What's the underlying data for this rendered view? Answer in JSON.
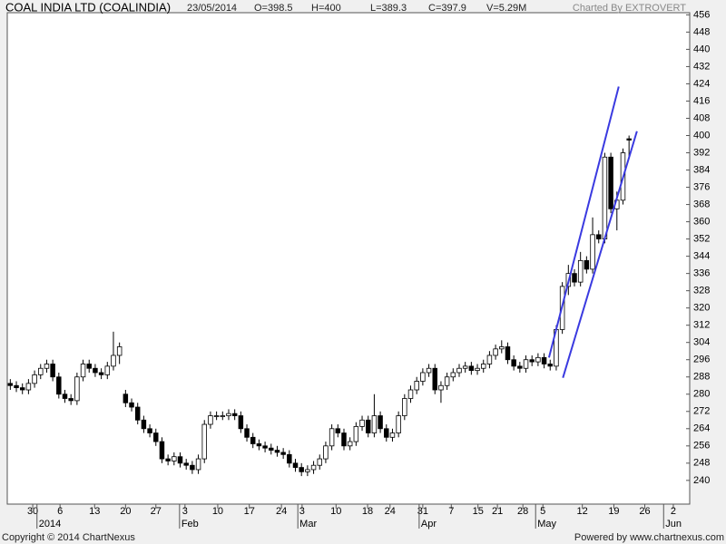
{
  "chart_data": {
    "type": "candlestick",
    "title": "COAL INDIA LTD (COALINDIA)",
    "info": [
      "23/05/2014",
      "O=398.5",
      "H=400",
      "L=389.3",
      "C=397.9",
      "V=5.29M"
    ],
    "credit": "Charted By EXTROVERT",
    "footer_left": "Copyright © 2014 ChartNexus",
    "footer_right": "Powered by www.chartnexus.com",
    "up_color": "#ffffff",
    "down_color": "#000000",
    "trend_color": "#3a3ae0",
    "open": [
      285,
      284,
      283,
      282,
      285,
      289,
      292,
      294,
      288,
      280,
      278,
      277,
      288,
      294,
      292,
      290,
      289,
      293,
      298,
      280,
      276,
      274,
      268,
      264,
      262,
      258,
      250,
      249,
      251,
      248,
      247,
      245,
      250,
      266,
      270,
      270,
      270,
      271,
      270,
      264,
      260,
      257,
      256,
      255,
      254,
      253,
      252,
      248,
      246,
      244,
      245,
      247,
      250,
      256,
      264,
      262,
      256,
      258,
      265,
      268,
      262,
      270,
      264,
      260,
      262,
      270,
      278,
      282,
      286,
      290,
      292,
      282,
      284,
      288,
      290,
      292,
      293,
      291,
      292,
      294,
      298,
      301,
      302,
      296,
      293,
      292,
      296,
      295,
      297,
      294,
      293,
      310,
      330,
      336,
      332,
      342,
      338,
      354,
      352,
      390,
      366,
      370,
      398.5
    ],
    "high": [
      287,
      286,
      285,
      287,
      291,
      294,
      296,
      296,
      290,
      282,
      280,
      290,
      296,
      296,
      294,
      292,
      295,
      309,
      304,
      282,
      278,
      276,
      270,
      266,
      264,
      260,
      252,
      253,
      253,
      250,
      249,
      252,
      268,
      272,
      272,
      272,
      273,
      273,
      272,
      266,
      262,
      259,
      258,
      257,
      256,
      255,
      254,
      250,
      248,
      247,
      249,
      252,
      258,
      266,
      266,
      264,
      260,
      267,
      270,
      270,
      280,
      272,
      266,
      264,
      272,
      280,
      284,
      288,
      292,
      294,
      294,
      286,
      290,
      292,
      294,
      295,
      295,
      294,
      296,
      300,
      303,
      305,
      304,
      298,
      295,
      298,
      298,
      299,
      299,
      296,
      312,
      332,
      340,
      338,
      346,
      344,
      362,
      356,
      392,
      392,
      374,
      394,
      400
    ],
    "low": [
      282,
      281,
      280,
      280,
      283,
      287,
      290,
      286,
      278,
      276,
      275,
      275,
      286,
      290,
      288,
      287,
      287,
      291,
      294,
      274,
      272,
      266,
      262,
      260,
      256,
      248,
      247,
      247,
      246,
      245,
      243,
      243,
      248,
      264,
      268,
      268,
      268,
      268,
      262,
      258,
      255,
      254,
      253,
      252,
      251,
      250,
      246,
      244,
      242,
      242,
      243,
      245,
      248,
      254,
      260,
      254,
      254,
      256,
      263,
      260,
      260,
      262,
      258,
      258,
      260,
      268,
      276,
      280,
      284,
      288,
      280,
      276,
      282,
      286,
      288,
      290,
      289,
      289,
      290,
      292,
      296,
      299,
      294,
      291,
      290,
      290,
      293,
      293,
      292,
      291,
      291,
      308,
      326,
      330,
      330,
      336,
      336,
      350,
      350,
      364,
      356,
      368,
      389.3
    ],
    "close": [
      284,
      283,
      282,
      285,
      289,
      292,
      294,
      288,
      280,
      278,
      277,
      288,
      294,
      292,
      290,
      289,
      293,
      298,
      302,
      276,
      274,
      268,
      264,
      262,
      258,
      250,
      249,
      251,
      248,
      247,
      245,
      250,
      266,
      270,
      270,
      270,
      271,
      270,
      264,
      260,
      257,
      256,
      255,
      254,
      253,
      252,
      248,
      246,
      244,
      245,
      247,
      250,
      256,
      264,
      262,
      256,
      258,
      265,
      268,
      262,
      270,
      264,
      260,
      262,
      270,
      278,
      282,
      286,
      290,
      292,
      282,
      284,
      288,
      290,
      292,
      293,
      291,
      292,
      294,
      298,
      301,
      302,
      296,
      293,
      292,
      296,
      295,
      297,
      294,
      293,
      310,
      330,
      336,
      332,
      342,
      338,
      354,
      352,
      390,
      366,
      370,
      392,
      397.9
    ],
    "trendlines": [
      {
        "x": [
          88.8,
          100.3
        ],
        "y": [
          297,
          422.7
        ]
      },
      {
        "x": [
          91.1,
          103.3
        ],
        "y": [
          287.6,
          402
        ]
      }
    ],
    "xlim": [
      -0.5,
      112
    ],
    "xticks": [
      {
        "value": 3.7,
        "label": "30"
      },
      {
        "value": 8.2,
        "label": "6"
      },
      {
        "value": 13.9,
        "label": "13"
      },
      {
        "value": 19,
        "label": "20"
      },
      {
        "value": 24,
        "label": "27"
      },
      {
        "value": 28.8,
        "label": "3"
      },
      {
        "value": 34.2,
        "label": "10"
      },
      {
        "value": 39.4,
        "label": "17"
      },
      {
        "value": 44.7,
        "label": "24"
      },
      {
        "value": 48.1,
        "label": "3"
      },
      {
        "value": 53.7,
        "label": "10"
      },
      {
        "value": 58.9,
        "label": "18"
      },
      {
        "value": 62.6,
        "label": "24"
      },
      {
        "value": 68,
        "label": "31"
      },
      {
        "value": 72.7,
        "label": "7"
      },
      {
        "value": 77.1,
        "label": "15"
      },
      {
        "value": 80.3,
        "label": "21"
      },
      {
        "value": 84.5,
        "label": "28"
      },
      {
        "value": 87.8,
        "label": "5"
      },
      {
        "value": 94.3,
        "label": "12"
      },
      {
        "value": 99.5,
        "label": "19"
      },
      {
        "value": 104.6,
        "label": "26"
      },
      {
        "value": 109.3,
        "label": "2"
      }
    ],
    "months": [
      {
        "value": 4.4,
        "label": "2014"
      },
      {
        "value": 27.9,
        "label": "Feb"
      },
      {
        "value": 47.4,
        "label": "Mar"
      },
      {
        "value": 67.4,
        "label": "Apr"
      },
      {
        "value": 86.6,
        "label": "May"
      },
      {
        "value": 107.7,
        "label": "Jun"
      }
    ],
    "ylim": [
      229,
      457
    ],
    "yticks": [
      240,
      248,
      256,
      264,
      272,
      280,
      288,
      296,
      304,
      312,
      320,
      328,
      336,
      344,
      352,
      360,
      368,
      376,
      384,
      392,
      400,
      408,
      416,
      424,
      432,
      440,
      448,
      456
    ]
  }
}
